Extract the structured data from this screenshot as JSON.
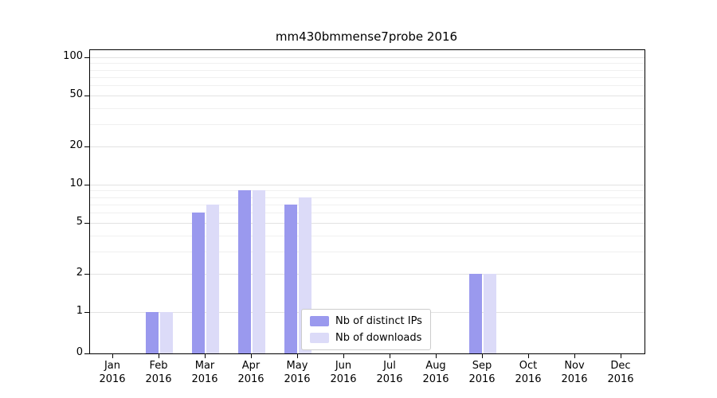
{
  "chart_data": {
    "type": "bar",
    "title": "mm430bmmense7probe 2016",
    "x_labels": [
      "Jan\n2016",
      "Feb\n2016",
      "Mar\n2016",
      "Apr\n2016",
      "May\n2016",
      "Jun\n2016",
      "Jul\n2016",
      "Aug\n2016",
      "Sep\n2016",
      "Oct\n2016",
      "Nov\n2016",
      "Dec\n2016"
    ],
    "series": [
      {
        "name": "Nb of distinct IPs",
        "color": "#9a99ee",
        "values": [
          0,
          1,
          6,
          9,
          7,
          0,
          0,
          0,
          2,
          0,
          0,
          0
        ]
      },
      {
        "name": "Nb of downloads",
        "color": "#dcdbf8",
        "values": [
          0,
          1,
          7,
          9,
          8,
          0,
          0,
          0,
          2,
          0,
          0,
          0
        ]
      }
    ],
    "y_scale": "symlog",
    "y_ticks": [
      {
        "value": 0,
        "label": "0"
      },
      {
        "value": 1,
        "label": "1"
      },
      {
        "value": 2,
        "label": "2"
      },
      {
        "value": 5,
        "label": "5"
      },
      {
        "value": 10,
        "label": "10"
      },
      {
        "value": 20,
        "label": "20"
      },
      {
        "value": 50,
        "label": "50"
      },
      {
        "value": 100,
        "label": "100"
      }
    ],
    "y_minor_gridlines": [
      3,
      4,
      6,
      7,
      8,
      9,
      30,
      40,
      60,
      70,
      80,
      90
    ],
    "ylim": [
      0,
      100
    ],
    "grid": true,
    "legend_position": "lower center"
  }
}
